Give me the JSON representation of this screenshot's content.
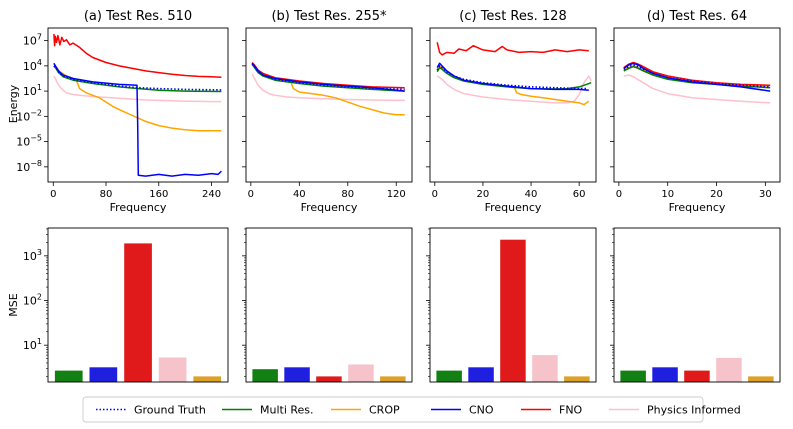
{
  "figure": {
    "ylabel_top": "Energy",
    "ylabel_bottom": "MSE",
    "xlabel": "Frequency"
  },
  "legend": [
    {
      "name": "Ground Truth",
      "color": "#0000ff",
      "style": "dotted"
    },
    {
      "name": "Multi Res.",
      "color": "#008000",
      "style": "solid"
    },
    {
      "name": "CROP",
      "color": "#ffa500",
      "style": "solid"
    },
    {
      "name": "CNO",
      "color": "#0000ff",
      "style": "solid"
    },
    {
      "name": "FNO",
      "color": "#ff0000",
      "style": "solid"
    },
    {
      "name": "Physics Informed",
      "color": "#ffc0cb",
      "style": "solid"
    }
  ],
  "chart_data": [
    {
      "type": "line",
      "title": "(a) Test Res. 510",
      "xlabel": "Frequency",
      "ylabel": "Energy",
      "xlim": [
        -8,
        265
      ],
      "xticks": [
        0,
        80,
        160,
        240
      ],
      "ylim_log10": [
        -9.8,
        8.5
      ],
      "yticks_log10": [
        7,
        4,
        1,
        -2,
        -5,
        -8
      ],
      "ytick_labels": [
        "10^7",
        "10^4",
        "10^1",
        "10^-2",
        "10^-5",
        "10^-8"
      ],
      "series": [
        {
          "name": "Ground Truth",
          "x": [
            1,
            4,
            8,
            15,
            30,
            60,
            100,
            130,
            160,
            200,
            255
          ],
          "log10_y": [
            4.0,
            3.8,
            3.3,
            2.8,
            2.4,
            2.0,
            1.6,
            1.4,
            1.3,
            1.2,
            1.15
          ]
        },
        {
          "name": "Multi Res.",
          "x": [
            1,
            4,
            8,
            15,
            30,
            60,
            100,
            130,
            160,
            200,
            255
          ],
          "log10_y": [
            4.0,
            3.7,
            3.2,
            2.7,
            2.3,
            1.9,
            1.5,
            1.3,
            1.1,
            1.0,
            0.95
          ]
        },
        {
          "name": "CROP",
          "x": [
            1,
            4,
            10,
            20,
            30,
            35,
            40,
            50,
            60,
            70,
            80,
            90,
            100,
            120,
            140,
            160,
            180,
            200,
            220,
            255
          ],
          "log10_y": [
            4.2,
            3.9,
            3.3,
            2.8,
            2.5,
            2.3,
            1.3,
            0.8,
            0.5,
            0.2,
            -0.3,
            -0.8,
            -1.2,
            -1.9,
            -2.6,
            -3.1,
            -3.4,
            -3.6,
            -3.7,
            -3.7
          ]
        },
        {
          "name": "CNO",
          "x": [
            1,
            4,
            8,
            15,
            30,
            60,
            100,
            127,
            128,
            129,
            140,
            160,
            180,
            200,
            220,
            240,
            250,
            255
          ],
          "log10_y": [
            4.3,
            3.9,
            3.4,
            2.9,
            2.5,
            2.1,
            1.8,
            1.7,
            -3.0,
            -9.0,
            -9.1,
            -8.9,
            -9.1,
            -8.9,
            -9.0,
            -8.8,
            -8.9,
            -8.5
          ]
        },
        {
          "name": "FNO",
          "x": [
            1,
            2,
            3,
            5,
            7,
            10,
            13,
            16,
            20,
            25,
            30,
            40,
            50,
            60,
            80,
            100,
            120,
            140,
            160,
            180,
            200,
            220,
            240,
            255
          ],
          "log10_y": [
            7.8,
            6.4,
            7.5,
            6.8,
            7.6,
            6.5,
            7.4,
            6.9,
            7.1,
            6.5,
            6.7,
            6.2,
            5.5,
            5.0,
            4.4,
            4.0,
            3.7,
            3.4,
            3.2,
            3.0,
            2.85,
            2.75,
            2.7,
            2.65
          ]
        },
        {
          "name": "Physics Informed",
          "x": [
            1,
            3,
            6,
            10,
            15,
            20,
            30,
            40,
            60,
            80,
            100,
            120,
            140,
            160,
            180,
            200,
            220,
            240,
            255
          ],
          "log10_y": [
            2.8,
            2.5,
            2.0,
            1.5,
            1.1,
            0.8,
            0.6,
            0.5,
            0.35,
            0.25,
            0.15,
            0.05,
            -0.05,
            -0.1,
            -0.15,
            -0.2,
            -0.22,
            -0.25,
            -0.25
          ]
        }
      ]
    },
    {
      "type": "line",
      "title": "(b) Test Res. 255*",
      "xlabel": "Frequency",
      "ylabel": "",
      "xlim": [
        -4,
        133
      ],
      "xticks": [
        0,
        40,
        80,
        120
      ],
      "ylim_log10": [
        -9.8,
        8.5
      ],
      "yticks_log10": [
        7,
        4,
        1,
        -2,
        -5,
        -8
      ],
      "series": [
        {
          "name": "Ground Truth",
          "x": [
            1,
            3,
            6,
            10,
            20,
            40,
            60,
            80,
            100,
            127
          ],
          "log10_y": [
            4.2,
            3.9,
            3.3,
            2.9,
            2.4,
            2.0,
            1.7,
            1.5,
            1.35,
            1.2
          ]
        },
        {
          "name": "Multi Res.",
          "x": [
            1,
            3,
            6,
            10,
            20,
            40,
            60,
            80,
            100,
            127
          ],
          "log10_y": [
            4.2,
            3.8,
            3.2,
            2.8,
            2.3,
            1.9,
            1.6,
            1.4,
            1.2,
            1.0
          ]
        },
        {
          "name": "CROP",
          "x": [
            1,
            3,
            6,
            10,
            20,
            30,
            33,
            35,
            40,
            50,
            60,
            70,
            80,
            90,
            100,
            110,
            120,
            127
          ],
          "log10_y": [
            4.2,
            3.9,
            3.4,
            3.0,
            2.5,
            2.2,
            2.1,
            1.3,
            0.9,
            0.7,
            0.5,
            0.2,
            -0.3,
            -0.8,
            -1.2,
            -1.6,
            -1.8,
            -1.8
          ]
        },
        {
          "name": "CNO",
          "x": [
            1,
            3,
            6,
            10,
            20,
            40,
            60,
            80,
            100,
            127
          ],
          "log10_y": [
            4.3,
            4.0,
            3.4,
            2.9,
            2.5,
            2.1,
            1.8,
            1.6,
            1.4,
            1.0
          ]
        },
        {
          "name": "FNO",
          "x": [
            1,
            3,
            6,
            10,
            20,
            40,
            60,
            80,
            100,
            127
          ],
          "log10_y": [
            4.4,
            4.1,
            3.5,
            3.1,
            2.6,
            2.2,
            1.9,
            1.7,
            1.5,
            1.4
          ]
        },
        {
          "name": "Physics Informed",
          "x": [
            1,
            3,
            6,
            10,
            15,
            20,
            30,
            40,
            60,
            80,
            100,
            127
          ],
          "log10_y": [
            3.0,
            2.5,
            1.7,
            1.1,
            0.7,
            0.5,
            0.3,
            0.2,
            0.1,
            0.0,
            -0.05,
            -0.1
          ]
        }
      ]
    },
    {
      "type": "line",
      "title": "(c) Test Res. 128",
      "xlabel": "Frequency",
      "ylabel": "",
      "xlim": [
        -2,
        67
      ],
      "xticks": [
        0,
        20,
        40,
        60
      ],
      "ylim_log10": [
        -9.8,
        8.5
      ],
      "yticks_log10": [
        7,
        4,
        1,
        -2,
        -5,
        -8
      ],
      "series": [
        {
          "name": "Ground Truth",
          "x": [
            1,
            2,
            3,
            5,
            8,
            12,
            20,
            30,
            40,
            50,
            55,
            60,
            63
          ],
          "log10_y": [
            3.5,
            4.0,
            3.8,
            3.3,
            2.8,
            2.4,
            2.0,
            1.7,
            1.5,
            1.4,
            1.35,
            1.3,
            1.3
          ]
        },
        {
          "name": "Multi Res.",
          "x": [
            1,
            2,
            3,
            5,
            8,
            12,
            20,
            30,
            40,
            50,
            55,
            60,
            63,
            65
          ],
          "log10_y": [
            3.3,
            3.8,
            3.6,
            3.1,
            2.6,
            2.2,
            1.8,
            1.5,
            1.3,
            1.25,
            1.3,
            1.5,
            1.8,
            2.0
          ]
        },
        {
          "name": "CROP",
          "x": [
            1,
            2,
            3,
            5,
            8,
            12,
            20,
            30,
            33,
            34,
            36,
            40,
            45,
            50,
            55,
            60,
            62,
            64
          ],
          "log10_y": [
            3.5,
            4.0,
            3.8,
            3.3,
            2.8,
            2.3,
            1.9,
            1.6,
            1.5,
            0.8,
            0.6,
            0.4,
            0.2,
            0.0,
            -0.2,
            -0.4,
            -0.6,
            -0.2
          ]
        },
        {
          "name": "CNO",
          "x": [
            1,
            2,
            3,
            5,
            8,
            12,
            20,
            30,
            40,
            50,
            55,
            60,
            64
          ],
          "log10_y": [
            3.8,
            4.3,
            4.0,
            3.4,
            2.8,
            2.3,
            1.9,
            1.6,
            1.3,
            1.2,
            1.2,
            1.2,
            1.1
          ]
        },
        {
          "name": "FNO",
          "x": [
            1,
            2,
            3,
            5,
            8,
            10,
            13,
            16,
            20,
            25,
            28,
            30,
            35,
            40,
            45,
            50,
            55,
            60,
            64
          ],
          "log10_y": [
            6.8,
            5.6,
            5.3,
            5.6,
            5.5,
            6.0,
            5.8,
            6.4,
            5.9,
            5.7,
            6.3,
            5.9,
            5.6,
            5.7,
            5.6,
            5.9,
            5.7,
            5.9,
            5.8
          ]
        },
        {
          "name": "Physics Informed",
          "x": [
            1,
            3,
            5,
            8,
            12,
            20,
            30,
            40,
            50,
            55,
            58,
            60,
            62,
            64,
            65
          ],
          "log10_y": [
            2.8,
            2.4,
            1.8,
            1.2,
            0.7,
            0.3,
            0.0,
            -0.2,
            -0.4,
            -0.4,
            -0.2,
            0.6,
            2.0,
            2.8,
            2.2
          ]
        }
      ]
    },
    {
      "type": "line",
      "title": "(d) Test Res. 64",
      "xlabel": "Frequency",
      "ylabel": "",
      "xlim": [
        -1,
        33
      ],
      "xticks": [
        0,
        10,
        20,
        30
      ],
      "ylim_log10": [
        -9.8,
        8.5
      ],
      "yticks_log10": [
        7,
        4,
        1,
        -2,
        -5,
        -8
      ],
      "series": [
        {
          "name": "Ground Truth",
          "x": [
            1,
            2,
            3,
            4,
            5,
            7,
            10,
            15,
            20,
            25,
            31
          ],
          "log10_y": [
            3.6,
            3.9,
            4.1,
            3.9,
            3.6,
            3.1,
            2.6,
            2.2,
            1.9,
            1.7,
            1.5
          ]
        },
        {
          "name": "Multi Res.",
          "x": [
            1,
            2,
            3,
            4,
            5,
            7,
            10,
            15,
            20,
            25,
            31
          ],
          "log10_y": [
            3.4,
            3.7,
            3.9,
            3.7,
            3.4,
            2.9,
            2.4,
            2.0,
            1.8,
            1.6,
            1.4
          ]
        },
        {
          "name": "CROP",
          "x": [
            1,
            2,
            3,
            4,
            5,
            7,
            10,
            15,
            20,
            25,
            31
          ],
          "log10_y": [
            3.5,
            3.8,
            4.0,
            3.8,
            3.5,
            3.0,
            2.5,
            2.1,
            1.85,
            1.65,
            1.45
          ]
        },
        {
          "name": "CNO",
          "x": [
            1,
            2,
            3,
            4,
            5,
            7,
            10,
            15,
            20,
            25,
            31
          ],
          "log10_y": [
            3.7,
            4.1,
            4.3,
            4.1,
            3.7,
            3.1,
            2.6,
            2.1,
            1.8,
            1.5,
            1.0
          ]
        },
        {
          "name": "FNO",
          "x": [
            1,
            2,
            3,
            4,
            5,
            7,
            10,
            15,
            20,
            25,
            31
          ],
          "log10_y": [
            3.8,
            4.2,
            4.4,
            4.2,
            3.9,
            3.3,
            2.8,
            2.3,
            2.0,
            1.8,
            1.7
          ]
        },
        {
          "name": "Physics Informed",
          "x": [
            1,
            2,
            3,
            5,
            7,
            10,
            15,
            20,
            25,
            31
          ],
          "log10_y": [
            2.8,
            2.9,
            2.7,
            2.0,
            1.3,
            0.7,
            0.2,
            0.0,
            -0.2,
            -0.4
          ]
        }
      ]
    },
    {
      "type": "bar",
      "title": "",
      "ylabel": "MSE",
      "yscale": "log",
      "ylim": [
        1.5,
        4200
      ],
      "yticks": [
        10,
        100,
        1000
      ],
      "ytick_labels": [
        "10^1",
        "10^2",
        "10^3"
      ],
      "categories": [
        "Multi Res.",
        "CNO",
        "FNO",
        "Physics Informed",
        "CROP"
      ],
      "colors": [
        "#128012",
        "#1f1fe0",
        "#e01a1a",
        "#f6c3cb",
        "#dca126"
      ],
      "values": [
        2.7,
        3.2,
        1900,
        5.3,
        2.0
      ]
    },
    {
      "type": "bar",
      "title": "",
      "ylabel": "",
      "yscale": "log",
      "ylim": [
        1.5,
        4200
      ],
      "yticks": [
        10,
        100,
        1000
      ],
      "categories": [
        "Multi Res.",
        "CNO",
        "FNO",
        "Physics Informed",
        "CROP"
      ],
      "colors": [
        "#128012",
        "#1f1fe0",
        "#e01a1a",
        "#f6c3cb",
        "#dca126"
      ],
      "values": [
        2.9,
        3.2,
        2.0,
        3.7,
        2.0
      ]
    },
    {
      "type": "bar",
      "title": "",
      "ylabel": "",
      "yscale": "log",
      "ylim": [
        1.5,
        4200
      ],
      "yticks": [
        10,
        100,
        1000
      ],
      "categories": [
        "Multi Res.",
        "CNO",
        "FNO",
        "Physics Informed",
        "CROP"
      ],
      "colors": [
        "#128012",
        "#1f1fe0",
        "#e01a1a",
        "#f6c3cb",
        "#dca126"
      ],
      "values": [
        2.7,
        3.2,
        2300,
        6.0,
        2.0
      ]
    },
    {
      "type": "bar",
      "title": "",
      "ylabel": "",
      "yscale": "log",
      "ylim": [
        1.5,
        4200
      ],
      "yticks": [
        10,
        100,
        1000
      ],
      "categories": [
        "Multi Res.",
        "CNO",
        "FNO",
        "Physics Informed",
        "CROP"
      ],
      "colors": [
        "#128012",
        "#1f1fe0",
        "#e01a1a",
        "#f6c3cb",
        "#dca126"
      ],
      "values": [
        2.7,
        3.2,
        2.7,
        5.2,
        2.0
      ]
    }
  ]
}
